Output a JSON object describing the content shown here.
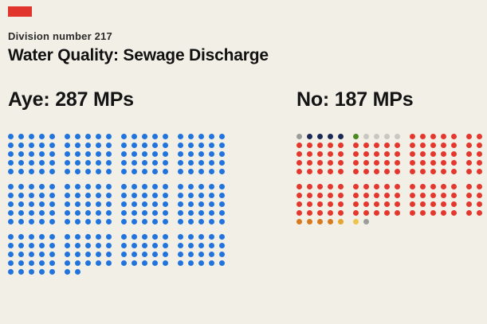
{
  "page": {
    "background": "#f1efe6",
    "brand_color": "#e0342c"
  },
  "header": {
    "kicker": "Division number 217",
    "title": "Water Quality: Sewage Discharge"
  },
  "chart_data": {
    "type": "waffle-dot-grid",
    "title": "Water Quality: Sewage Discharge",
    "subtitle": "Division number 217",
    "description": "One dot per MP, grouped in blocks of 5x5 dots, four blocks per row",
    "series": [
      {
        "id": "aye",
        "name": "Aye",
        "label": "Aye: 287 MPs",
        "value": 287,
        "color": "#2274dd",
        "head_colors": [],
        "tail_colors": []
      },
      {
        "id": "no",
        "name": "No",
        "label": "No: 187 MPs",
        "value": 187,
        "color": "#e4382f",
        "head_colors": [
          "#9c9c9c",
          "#1c2957",
          "#1c2957",
          "#1c2957",
          "#1c2957",
          "#4a8a1f",
          "#c9c7c0",
          "#c9c7c0",
          "#c9c7c0",
          "#c9c7c0"
        ],
        "tail_colors": [
          "#d8791d",
          "#d8791d",
          "#d8791d",
          "#d8791d",
          "#e8a430",
          "#eec34e",
          "#9c9c9c"
        ]
      }
    ],
    "layout": {
      "dots_per_row": 20,
      "block_cols": 5,
      "band_rows": 5,
      "dot_size": 7,
      "h_gap": 6,
      "v_gap": 4,
      "block_extra_gap": 6,
      "band_extra_gap": 8,
      "legend": "none",
      "grid": "off"
    }
  }
}
